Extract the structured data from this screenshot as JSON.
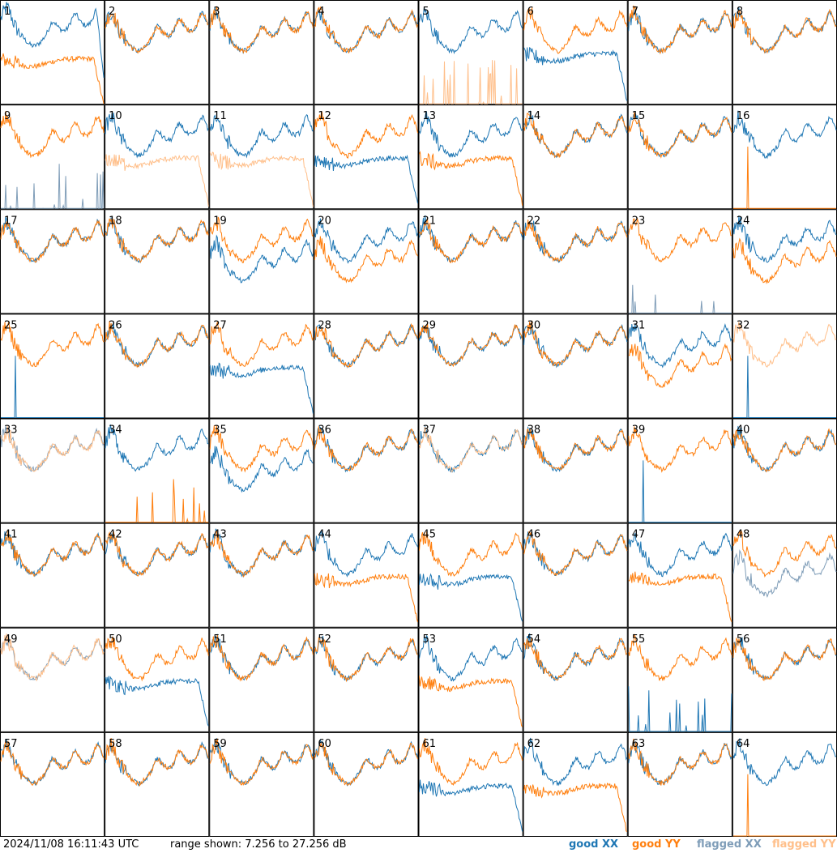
{
  "footer": {
    "timestamp": "2024/11/08 16:11:43 UTC",
    "range_text": "range shown: 7.256 to 27.256 dB"
  },
  "legend": [
    {
      "label": "good XX",
      "color": "#1f77b4"
    },
    {
      "label": "good YY",
      "color": "#ff7f0e"
    },
    {
      "label": "flagged XX",
      "color": "#7f9db8"
    },
    {
      "label": "flagged YY",
      "color": "#ffbf8a"
    }
  ],
  "chart_data": {
    "type": "line",
    "title": "",
    "rows": 8,
    "cols": 8,
    "ylim": [
      7.256,
      27.256
    ],
    "y_units": "dB",
    "x_samples": 128,
    "series_names": [
      "good XX",
      "good YY",
      "flagged XX",
      "flagged YY"
    ],
    "panels": [
      {
        "label": "1",
        "xx": "high_drop",
        "yy": "low_drop",
        "yy_offset": -1
      },
      {
        "label": "2",
        "xx": "normal",
        "yy": "normal"
      },
      {
        "label": "3",
        "xx": "normal",
        "yy": "normal"
      },
      {
        "label": "4",
        "xx": "normal",
        "yy": "normal"
      },
      {
        "label": "5",
        "xx": "normal",
        "yy": "spikes_yy"
      },
      {
        "label": "6",
        "xx": "low_drop",
        "yy": "normal"
      },
      {
        "label": "7",
        "xx": "normal",
        "yy": "normal"
      },
      {
        "label": "8",
        "xx": "normal",
        "yy": "normal"
      },
      {
        "label": "9",
        "xx": "spikes_flag",
        "yy": "normal"
      },
      {
        "label": "10",
        "xx": "normal",
        "yy": "low_drop",
        "yy_flag": true
      },
      {
        "label": "11",
        "xx": "normal",
        "yy": "low_drop",
        "yy_flag": true
      },
      {
        "label": "12",
        "xx": "low_drop",
        "yy": "normal"
      },
      {
        "label": "13",
        "xx": "normal",
        "yy": "low_drop"
      },
      {
        "label": "14",
        "xx": "normal",
        "yy": "normal"
      },
      {
        "label": "15",
        "xx": "normal",
        "yy": "normal"
      },
      {
        "label": "16",
        "xx": "normal",
        "yy": "spike_single"
      },
      {
        "label": "17",
        "xx": "normal",
        "yy": "normal"
      },
      {
        "label": "18",
        "xx": "normal",
        "yy": "normal"
      },
      {
        "label": "19",
        "xx": "low",
        "yy": "normal"
      },
      {
        "label": "20",
        "xx": "normal",
        "yy": "low"
      },
      {
        "label": "21",
        "xx": "normal",
        "yy": "normal"
      },
      {
        "label": "22",
        "xx": "normal",
        "yy": "normal"
      },
      {
        "label": "23",
        "xx": "spikes_flag",
        "yy": "normal"
      },
      {
        "label": "24",
        "xx": "normal",
        "yy": "low"
      },
      {
        "label": "25",
        "xx": "spike_single",
        "yy": "normal"
      },
      {
        "label": "26",
        "xx": "normal",
        "yy": "normal"
      },
      {
        "label": "27",
        "xx": "low_drop",
        "yy": "normal"
      },
      {
        "label": "28",
        "xx": "normal",
        "yy": "normal"
      },
      {
        "label": "29",
        "xx": "normal",
        "yy": "normal"
      },
      {
        "label": "30",
        "xx": "normal",
        "yy": "normal"
      },
      {
        "label": "31",
        "xx": "normal",
        "yy": "low"
      },
      {
        "label": "32",
        "xx": "spike_single",
        "yy": "normal",
        "yy_flag": true
      },
      {
        "label": "33",
        "xx": "normal",
        "yy": "normal",
        "xx_flag": true,
        "yy_flag": true
      },
      {
        "label": "34",
        "xx": "normal",
        "yy": "spikes_yy"
      },
      {
        "label": "35",
        "xx": "low",
        "yy": "normal"
      },
      {
        "label": "36",
        "xx": "normal",
        "yy": "normal"
      },
      {
        "label": "37",
        "xx": "normal",
        "yy": "normal",
        "yy_flag": true
      },
      {
        "label": "38",
        "xx": "normal",
        "yy": "normal"
      },
      {
        "label": "39",
        "xx": "spike_single",
        "yy": "normal"
      },
      {
        "label": "40",
        "xx": "normal",
        "yy": "normal"
      },
      {
        "label": "41",
        "xx": "normal",
        "yy": "normal"
      },
      {
        "label": "42",
        "xx": "normal",
        "yy": "normal"
      },
      {
        "label": "43",
        "xx": "normal",
        "yy": "normal"
      },
      {
        "label": "44",
        "xx": "normal",
        "yy": "low_drop"
      },
      {
        "label": "45",
        "xx": "low_drop",
        "yy": "normal"
      },
      {
        "label": "46",
        "xx": "normal",
        "yy": "normal"
      },
      {
        "label": "47",
        "xx": "normal",
        "yy": "low_drop"
      },
      {
        "label": "48",
        "xx": "low",
        "yy": "normal",
        "xx_flag": true
      },
      {
        "label": "49",
        "xx": "normal",
        "yy": "normal",
        "xx_flag": true,
        "yy_flag": true
      },
      {
        "label": "50",
        "xx": "low_drop",
        "yy": "normal"
      },
      {
        "label": "51",
        "xx": "normal",
        "yy": "normal"
      },
      {
        "label": "52",
        "xx": "normal",
        "yy": "normal"
      },
      {
        "label": "53",
        "xx": "normal",
        "yy": "low_drop"
      },
      {
        "label": "54",
        "xx": "normal",
        "yy": "normal"
      },
      {
        "label": "55",
        "xx": "spikes_flag_blue",
        "yy": "normal"
      },
      {
        "label": "56",
        "xx": "normal",
        "yy": "normal"
      },
      {
        "label": "57",
        "xx": "normal",
        "yy": "normal"
      },
      {
        "label": "58",
        "xx": "normal",
        "yy": "normal"
      },
      {
        "label": "59",
        "xx": "normal",
        "yy": "normal"
      },
      {
        "label": "60",
        "xx": "normal",
        "yy": "normal"
      },
      {
        "label": "61",
        "xx": "low_drop",
        "yy": "normal"
      },
      {
        "label": "62",
        "xx": "normal",
        "yy": "low_drop"
      },
      {
        "label": "63",
        "xx": "normal",
        "yy": "normal"
      },
      {
        "label": "64",
        "xx": "normal",
        "yy": "spike_single"
      }
    ]
  }
}
